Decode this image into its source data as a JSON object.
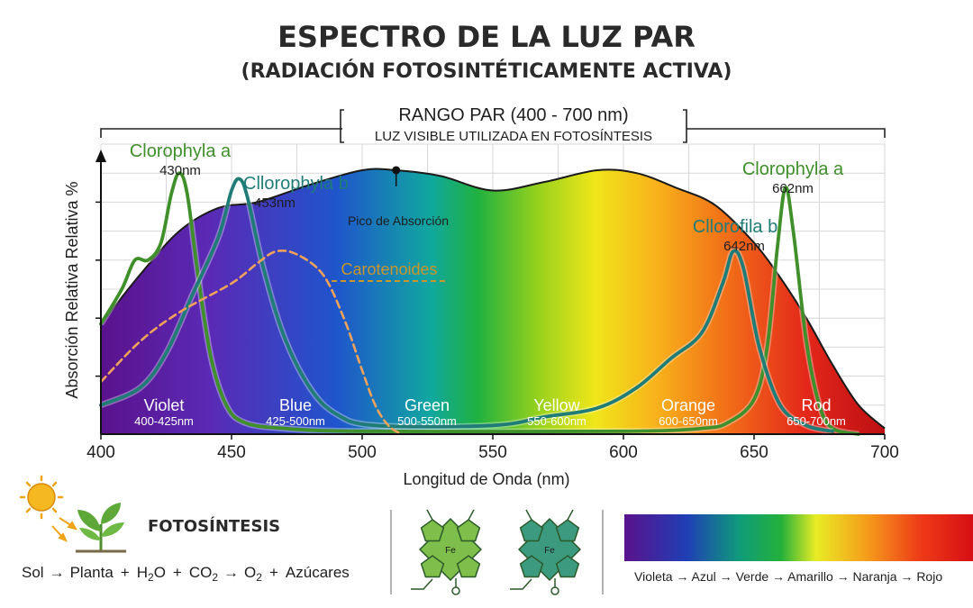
{
  "title": "ESPECTRO DE LA LUZ PAR",
  "subtitle": "(RADIACIÓN FOTOSINTÉTICAMENTE ACTIVA)",
  "range_box": {
    "line1": "RANGO PAR (400 - 700 nm)",
    "line2": "LUZ VISIBLE UTILIZADA EN FOTOSÍNTESIS"
  },
  "chart_data": {
    "type": "area",
    "xlabel": "Longitud de Onda (nm)",
    "ylabel": "Absorción Relativa Relativa %",
    "xlim": [
      400,
      700
    ],
    "ylim": [
      0,
      100
    ],
    "x_ticks": [
      "400",
      "450",
      "500",
      "550",
      "600",
      "650",
      "700"
    ],
    "grid": true,
    "series": [
      {
        "name": "",
        "color": "#1a1a1a",
        "points": [
          [
            400,
            38
          ],
          [
            415,
            55
          ],
          [
            430,
            70
          ],
          [
            445,
            78
          ],
          [
            460,
            80
          ],
          [
            480,
            86
          ],
          [
            500,
            91
          ],
          [
            513,
            91
          ],
          [
            530,
            89
          ],
          [
            550,
            84
          ],
          [
            570,
            87
          ],
          [
            590,
            91
          ],
          [
            605,
            90
          ],
          [
            620,
            85
          ],
          [
            635,
            79
          ],
          [
            650,
            66
          ],
          [
            660,
            54
          ],
          [
            670,
            40
          ],
          [
            680,
            24
          ],
          [
            690,
            10
          ],
          [
            700,
            2
          ]
        ]
      },
      {
        "name": "Clorophyla a",
        "color": "#3f8f2a",
        "points": [
          [
            400,
            38
          ],
          [
            408,
            50
          ],
          [
            413,
            60
          ],
          [
            418,
            60
          ],
          [
            423,
            66
          ],
          [
            427,
            83
          ],
          [
            430,
            90
          ],
          [
            433,
            83
          ],
          [
            437,
            56
          ],
          [
            442,
            27
          ],
          [
            448,
            10
          ],
          [
            455,
            4
          ],
          [
            470,
            2
          ],
          [
            500,
            1
          ],
          [
            600,
            1
          ],
          [
            630,
            2
          ],
          [
            640,
            4
          ],
          [
            650,
            12
          ],
          [
            655,
            30
          ],
          [
            659,
            65
          ],
          [
            662,
            85
          ],
          [
            665,
            70
          ],
          [
            670,
            32
          ],
          [
            675,
            10
          ],
          [
            680,
            2
          ],
          [
            690,
            0
          ]
        ]
      },
      {
        "name": "Cllorophyla b",
        "color": "#1f7c77",
        "points": [
          [
            400,
            10
          ],
          [
            415,
            16
          ],
          [
            425,
            28
          ],
          [
            435,
            48
          ],
          [
            445,
            68
          ],
          [
            450,
            84
          ],
          [
            453,
            88
          ],
          [
            456,
            82
          ],
          [
            462,
            58
          ],
          [
            470,
            34
          ],
          [
            480,
            16
          ],
          [
            490,
            7
          ],
          [
            505,
            3
          ],
          [
            550,
            3
          ],
          [
            570,
            6
          ],
          [
            590,
            9
          ],
          [
            605,
            16
          ],
          [
            618,
            26
          ],
          [
            630,
            35
          ],
          [
            638,
            52
          ],
          [
            642,
            63
          ],
          [
            646,
            57
          ],
          [
            652,
            30
          ],
          [
            660,
            10
          ],
          [
            670,
            3
          ],
          [
            680,
            1
          ]
        ]
      },
      {
        "name": "Carotenoides",
        "color": "#f0a25a",
        "points": [
          [
            400,
            18
          ],
          [
            415,
            32
          ],
          [
            430,
            42
          ],
          [
            450,
            52
          ],
          [
            460,
            59
          ],
          [
            467,
            63
          ],
          [
            475,
            62
          ],
          [
            485,
            55
          ],
          [
            493,
            40
          ],
          [
            500,
            22
          ],
          [
            505,
            10
          ],
          [
            510,
            3
          ],
          [
            515,
            0
          ]
        ]
      }
    ],
    "annotations": [
      {
        "label": "Clorophyla a",
        "sub": "430nm",
        "x": 430,
        "y": 90
      },
      {
        "label": "Cllorophyla b",
        "sub": "453nm",
        "x": 453,
        "y": 88
      },
      {
        "label": "Pico de Absorción",
        "x": 513,
        "y": 91
      },
      {
        "label": "Carotenoides",
        "x": 467,
        "y": 63
      },
      {
        "label": "Cllorofila b",
        "sub": "642nm",
        "x": 642,
        "y": 63
      },
      {
        "label": "Clorophyla a",
        "sub": "662nm",
        "x": 662,
        "y": 85
      }
    ],
    "bands": [
      {
        "name": "Violet",
        "range": "400-425nm"
      },
      {
        "name": "Blue",
        "range": "425-500nm"
      },
      {
        "name": "Green",
        "range": "500-550nm"
      },
      {
        "name": "Yellow",
        "range": "550-600nm"
      },
      {
        "name": "Orange",
        "range": "600-650nm"
      },
      {
        "name": "Rod",
        "range": "650-700nm"
      }
    ]
  },
  "bottom": {
    "heading": "FOTOSÍNTESIS",
    "equation": {
      "sol": "Sol",
      "arrow": "→",
      "planta": "Planta",
      "plus": "+",
      "h": "H",
      "two": "2",
      "o": "O",
      "co": "CO",
      "o2": "O",
      "azucares": "Azúcares"
    },
    "molecule_label": "Fe",
    "legend_text": "Violeta → Azul → Verde → Amarillo → Naranja → Rojo",
    "colors": {
      "sun": "#f5b820",
      "plant": "#5ea83a",
      "molecule1": "#7dbf4a",
      "molecule2": "#3c9a7f"
    }
  }
}
